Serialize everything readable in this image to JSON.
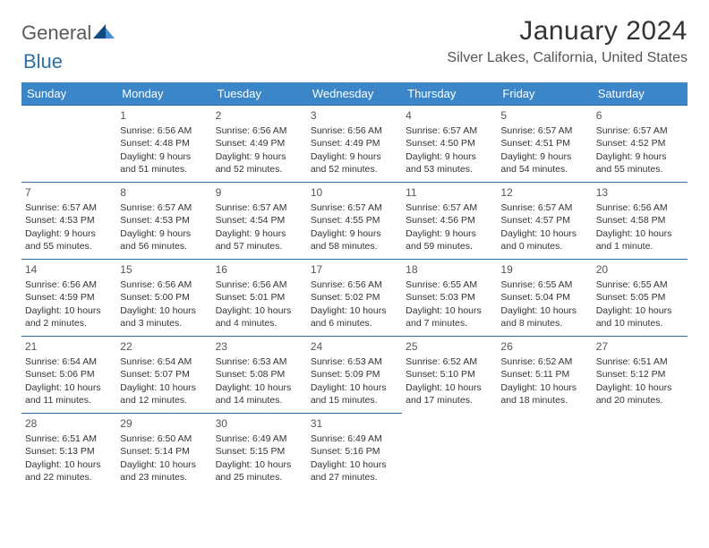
{
  "brand": {
    "word1": "General",
    "word2": "Blue"
  },
  "title": "January 2024",
  "location": "Silver Lakes, California, United States",
  "colors": {
    "headerBg": "#3a86c8",
    "headerText": "#ffffff",
    "ruleColor": "#2f6fa8",
    "textColor": "#333333",
    "logoGray": "#5a5a5a",
    "logoBlue": "#2f6fa8",
    "triDark": "#0f4c81",
    "triLight": "#4a8fcf"
  },
  "weekdays": [
    "Sunday",
    "Monday",
    "Tuesday",
    "Wednesday",
    "Thursday",
    "Friday",
    "Saturday"
  ],
  "startOffset": 1,
  "days": [
    {
      "n": 1,
      "sr": "6:56 AM",
      "ss": "4:48 PM",
      "dl": "9 hours and 51 minutes."
    },
    {
      "n": 2,
      "sr": "6:56 AM",
      "ss": "4:49 PM",
      "dl": "9 hours and 52 minutes."
    },
    {
      "n": 3,
      "sr": "6:56 AM",
      "ss": "4:49 PM",
      "dl": "9 hours and 52 minutes."
    },
    {
      "n": 4,
      "sr": "6:57 AM",
      "ss": "4:50 PM",
      "dl": "9 hours and 53 minutes."
    },
    {
      "n": 5,
      "sr": "6:57 AM",
      "ss": "4:51 PM",
      "dl": "9 hours and 54 minutes."
    },
    {
      "n": 6,
      "sr": "6:57 AM",
      "ss": "4:52 PM",
      "dl": "9 hours and 55 minutes."
    },
    {
      "n": 7,
      "sr": "6:57 AM",
      "ss": "4:53 PM",
      "dl": "9 hours and 55 minutes."
    },
    {
      "n": 8,
      "sr": "6:57 AM",
      "ss": "4:53 PM",
      "dl": "9 hours and 56 minutes."
    },
    {
      "n": 9,
      "sr": "6:57 AM",
      "ss": "4:54 PM",
      "dl": "9 hours and 57 minutes."
    },
    {
      "n": 10,
      "sr": "6:57 AM",
      "ss": "4:55 PM",
      "dl": "9 hours and 58 minutes."
    },
    {
      "n": 11,
      "sr": "6:57 AM",
      "ss": "4:56 PM",
      "dl": "9 hours and 59 minutes."
    },
    {
      "n": 12,
      "sr": "6:57 AM",
      "ss": "4:57 PM",
      "dl": "10 hours and 0 minutes."
    },
    {
      "n": 13,
      "sr": "6:56 AM",
      "ss": "4:58 PM",
      "dl": "10 hours and 1 minute."
    },
    {
      "n": 14,
      "sr": "6:56 AM",
      "ss": "4:59 PM",
      "dl": "10 hours and 2 minutes."
    },
    {
      "n": 15,
      "sr": "6:56 AM",
      "ss": "5:00 PM",
      "dl": "10 hours and 3 minutes."
    },
    {
      "n": 16,
      "sr": "6:56 AM",
      "ss": "5:01 PM",
      "dl": "10 hours and 4 minutes."
    },
    {
      "n": 17,
      "sr": "6:56 AM",
      "ss": "5:02 PM",
      "dl": "10 hours and 6 minutes."
    },
    {
      "n": 18,
      "sr": "6:55 AM",
      "ss": "5:03 PM",
      "dl": "10 hours and 7 minutes."
    },
    {
      "n": 19,
      "sr": "6:55 AM",
      "ss": "5:04 PM",
      "dl": "10 hours and 8 minutes."
    },
    {
      "n": 20,
      "sr": "6:55 AM",
      "ss": "5:05 PM",
      "dl": "10 hours and 10 minutes."
    },
    {
      "n": 21,
      "sr": "6:54 AM",
      "ss": "5:06 PM",
      "dl": "10 hours and 11 minutes."
    },
    {
      "n": 22,
      "sr": "6:54 AM",
      "ss": "5:07 PM",
      "dl": "10 hours and 12 minutes."
    },
    {
      "n": 23,
      "sr": "6:53 AM",
      "ss": "5:08 PM",
      "dl": "10 hours and 14 minutes."
    },
    {
      "n": 24,
      "sr": "6:53 AM",
      "ss": "5:09 PM",
      "dl": "10 hours and 15 minutes."
    },
    {
      "n": 25,
      "sr": "6:52 AM",
      "ss": "5:10 PM",
      "dl": "10 hours and 17 minutes."
    },
    {
      "n": 26,
      "sr": "6:52 AM",
      "ss": "5:11 PM",
      "dl": "10 hours and 18 minutes."
    },
    {
      "n": 27,
      "sr": "6:51 AM",
      "ss": "5:12 PM",
      "dl": "10 hours and 20 minutes."
    },
    {
      "n": 28,
      "sr": "6:51 AM",
      "ss": "5:13 PM",
      "dl": "10 hours and 22 minutes."
    },
    {
      "n": 29,
      "sr": "6:50 AM",
      "ss": "5:14 PM",
      "dl": "10 hours and 23 minutes."
    },
    {
      "n": 30,
      "sr": "6:49 AM",
      "ss": "5:15 PM",
      "dl": "10 hours and 25 minutes."
    },
    {
      "n": 31,
      "sr": "6:49 AM",
      "ss": "5:16 PM",
      "dl": "10 hours and 27 minutes."
    }
  ],
  "labels": {
    "sunrise": "Sunrise:",
    "sunset": "Sunset:",
    "daylight": "Daylight:"
  }
}
